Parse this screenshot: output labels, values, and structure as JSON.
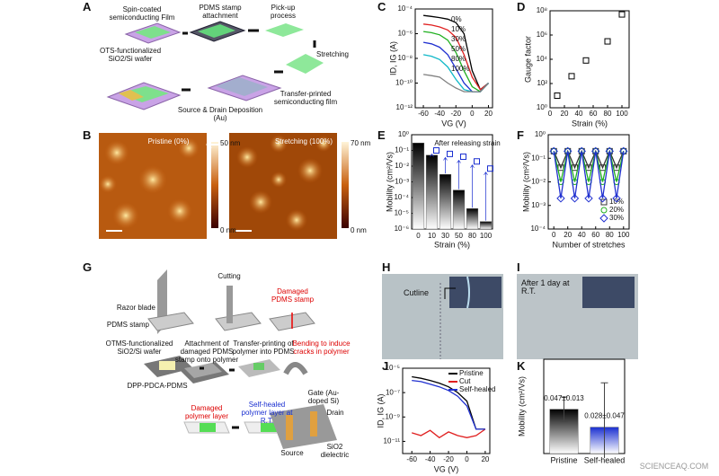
{
  "figure": {
    "panel_labels": [
      "A",
      "B",
      "C",
      "D",
      "E",
      "F",
      "G",
      "H",
      "I",
      "J",
      "K"
    ],
    "a_texts": [
      "Spin-coated semiconducting Film",
      "OTS-functionalized SiO2/Si wafer",
      "PDMS stamp attachment",
      "Pick-up process",
      "Stretching",
      "Transfer-printed semiconducting film",
      "Source & Drain Deposition (Au)"
    ],
    "b_texts": [
      "Pristine (0%)",
      "Stretching (100%)",
      "50 nm",
      "0 nm",
      "70 nm",
      "0 nm"
    ],
    "g_texts": [
      "Razor blade",
      "PDMS stamp",
      "Cutting",
      "Damaged PDMS stamp",
      "OTMS-functionalized SiO2/Si wafer",
      "Attachment of damaged PDMS stamp onto polymer",
      "Transfer-printing of polymer into PDMS",
      "Bending to induce cracks in polymer",
      "DPP-PDCA-PDMS",
      "Damaged polymer layer",
      "Self-healed polymer layer at R.T.",
      "Gate (Au-doped Si)",
      "Drain",
      "Source",
      "SiO2 dielectric"
    ],
    "h_text": "Cutline",
    "i_text": "After 1 day at R.T.",
    "watermark": "SCIENCEAQ.COM"
  },
  "chart_data": [
    {
      "type": "line",
      "log_y": true,
      "x_label": "VG (V)",
      "y_label": "ID, IG (A)",
      "legend": "inline",
      "x": [
        -60,
        -50,
        -40,
        -30,
        -20,
        -10,
        0,
        10,
        20
      ],
      "xlim": [
        -70,
        25
      ],
      "xticks": [
        -60,
        -40,
        -20,
        0,
        20
      ],
      "ylim": [
        1e-12,
        0.0001
      ],
      "yticks": [
        {
          "value": 1e-12,
          "label": "10⁻¹²"
        },
        {
          "value": 1e-10,
          "label": "10⁻¹⁰"
        },
        {
          "value": 1e-08,
          "label": "10⁻⁸"
        },
        {
          "value": 1e-06,
          "label": "10⁻⁶"
        },
        {
          "value": 0.0001,
          "label": "10⁻⁴"
        }
      ],
      "series": [
        {
          "name": "0%",
          "color": "#000000",
          "values": [
            3e-05,
            2.5e-05,
            2e-05,
            1.5e-05,
            8e-06,
            1e-06,
            1e-09,
            3e-11,
            1e-10
          ]
        },
        {
          "name": "10%",
          "color": "#e02020",
          "values": [
            6e-06,
            5e-06,
            3.5e-06,
            2e-06,
            5e-07,
            2e-08,
            3e-10,
            3e-11,
            1e-10
          ]
        },
        {
          "name": "30%",
          "color": "#20b020",
          "values": [
            1.5e-06,
            1.2e-06,
            8e-07,
            3e-07,
            3e-08,
            1e-09,
            5e-11,
            2e-11,
            1e-10
          ]
        },
        {
          "name": "50%",
          "color": "#2030d0",
          "values": [
            2e-07,
            1.5e-07,
            8e-08,
            2e-08,
            1.5e-09,
            1e-10,
            2e-11,
            2e-11,
            1e-10
          ]
        },
        {
          "name": "80%",
          "color": "#10b8c8",
          "values": [
            2e-08,
            1.5e-08,
            8e-09,
            2e-09,
            2e-10,
            3e-11,
            2e-11,
            2e-11,
            1e-10
          ]
        },
        {
          "name": "100%",
          "color": "#808080",
          "values": [
            5e-10,
            4e-10,
            3e-10,
            1e-10,
            4e-11,
            2e-11,
            2e-11,
            2e-11,
            1e-10
          ]
        }
      ]
    },
    {
      "type": "scatter",
      "log_y": true,
      "x_label": "Strain (%)",
      "y_label": "Gauge factor",
      "x": [
        10,
        30,
        50,
        80,
        100
      ],
      "values": [
        10,
        400,
        8000,
        300000,
        50000000
      ],
      "color": "#000000",
      "xlim": [
        0,
        110
      ],
      "xticks": [
        0,
        20,
        40,
        60,
        80,
        100
      ],
      "ylim": [
        1,
        100000000.0
      ],
      "yticks": [
        {
          "value": 1,
          "label": "10⁰"
        },
        {
          "value": 100,
          "label": "10²"
        },
        {
          "value": 10000,
          "label": "10⁴"
        },
        {
          "value": 1000000,
          "label": "10⁶"
        },
        {
          "value": 100000000,
          "label": "10⁸"
        }
      ]
    },
    {
      "type": "bar",
      "log_y": true,
      "x_label": "Strain (%)",
      "y_label": "Mobility (cm²/Vs)",
      "categories": [
        "0",
        "10",
        "30",
        "50",
        "80",
        "100"
      ],
      "values": [
        0.3,
        0.05,
        0.003,
        0.0003,
        2e-05,
        3e-06
      ],
      "color": "#000000",
      "annotation": "After releasing strain",
      "annotation_color": "#1a2fd0",
      "annotation_values": [
        null,
        0.1,
        0.06,
        0.04,
        0.02,
        0.007
      ],
      "ylim": [
        1e-06,
        1
      ],
      "yticks": [
        {
          "value": 1e-06,
          "label": "10⁻⁶"
        },
        {
          "value": 1e-05,
          "label": "10⁻⁵"
        },
        {
          "value": 0.0001,
          "label": "10⁻⁴"
        },
        {
          "value": 0.001,
          "label": "10⁻³"
        },
        {
          "value": 0.01,
          "label": "10⁻²"
        },
        {
          "value": 0.1,
          "label": "10⁻¹"
        },
        {
          "value": 1,
          "label": "10⁰"
        }
      ]
    },
    {
      "type": "line",
      "log_y": true,
      "x_label": "Number of stretches",
      "y_label": "Mobility (cm²/Vs)",
      "legend": "lower right",
      "x": [
        0,
        10,
        20,
        30,
        40,
        50,
        60,
        70,
        80,
        90,
        100
      ],
      "xlim": [
        -8,
        108
      ],
      "xticks": [
        0,
        20,
        40,
        60,
        80,
        100
      ],
      "ylim": [
        0.0001,
        1
      ],
      "yticks": [
        {
          "value": 0.0001,
          "label": "10⁻⁴"
        },
        {
          "value": 0.001,
          "label": "10⁻³"
        },
        {
          "value": 0.01,
          "label": "10⁻²"
        },
        {
          "value": 0.1,
          "label": "10⁻¹"
        },
        {
          "value": 1,
          "label": "10⁰"
        }
      ],
      "series": [
        {
          "name": "10%",
          "color": "#333333",
          "marker": "square",
          "values": [
            0.2,
            0.04,
            0.2,
            0.04,
            0.2,
            0.04,
            0.2,
            0.04,
            0.2,
            0.04,
            0.2
          ]
        },
        {
          "name": "20%",
          "color": "#20b020",
          "marker": "circle",
          "values": [
            0.2,
            0.01,
            0.2,
            0.01,
            0.2,
            0.01,
            0.2,
            0.01,
            0.2,
            0.01,
            0.2
          ]
        },
        {
          "name": "30%",
          "color": "#2030d0",
          "marker": "diamond",
          "values": [
            0.2,
            0.002,
            0.2,
            0.002,
            0.2,
            0.002,
            0.2,
            0.002,
            0.2,
            0.002,
            0.2
          ]
        }
      ]
    },
    {
      "type": "line",
      "log_y": true,
      "x_label": "VG (V)",
      "y_label": "ID, IG (A)",
      "legend": "upper right",
      "x": [
        -60,
        -50,
        -40,
        -30,
        -20,
        -10,
        0,
        10,
        20
      ],
      "xlim": [
        -70,
        25
      ],
      "xticks": [
        -60,
        -40,
        -20,
        0,
        20
      ],
      "ylim": [
        1e-12,
        1e-05
      ],
      "yticks": [
        {
          "value": 1e-11,
          "label": "10⁻¹¹"
        },
        {
          "value": 1e-09,
          "label": "10⁻⁹"
        },
        {
          "value": 1e-07,
          "label": "10⁻⁷"
        },
        {
          "value": 1e-05,
          "label": "10⁻⁵"
        }
      ],
      "series": [
        {
          "name": "Pristine",
          "color": "#000000",
          "values": [
            2e-06,
            1.5e-06,
            1e-06,
            6e-07,
            3e-07,
            1e-07,
            2e-08,
            1e-10,
            1e-10
          ]
        },
        {
          "name": "Cut",
          "color": "#e02020",
          "values": [
            5e-11,
            3e-11,
            8e-11,
            2e-11,
            6e-11,
            3e-11,
            2e-11,
            3e-11,
            1e-10
          ]
        },
        {
          "name": "Self-healed",
          "color": "#2030d0",
          "values": [
            1e-06,
            8e-07,
            5e-07,
            3e-07,
            1.5e-07,
            5e-08,
            8e-09,
            1e-10,
            1e-10
          ]
        }
      ]
    },
    {
      "type": "bar",
      "y_label": "Mobility (cm²/Vs)",
      "categories": [
        "Pristine",
        "Self-healed"
      ],
      "values": [
        0.047,
        0.028
      ],
      "errors": [
        0.013,
        0.047
      ],
      "value_labels": [
        "0.047±0.013",
        "0.028±0.047"
      ],
      "colors": [
        "#000000",
        "#1a2fd0"
      ],
      "ylim": [
        0,
        0.1
      ]
    }
  ]
}
